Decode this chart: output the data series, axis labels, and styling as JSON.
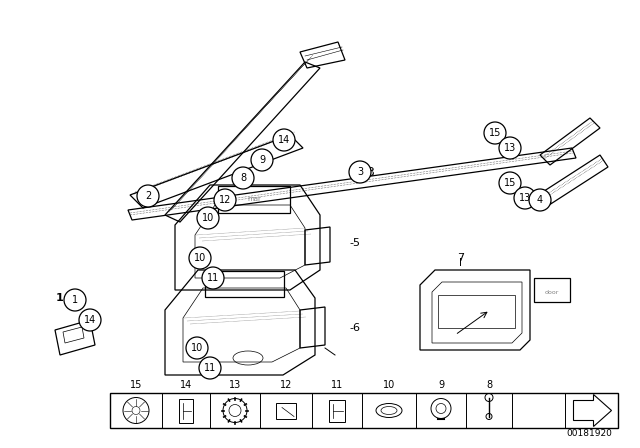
{
  "background_color": "#ffffff",
  "line_color": "#000000",
  "part_number_text": "00181920",
  "fig_width": 6.4,
  "fig_height": 4.48,
  "dpi": 100
}
